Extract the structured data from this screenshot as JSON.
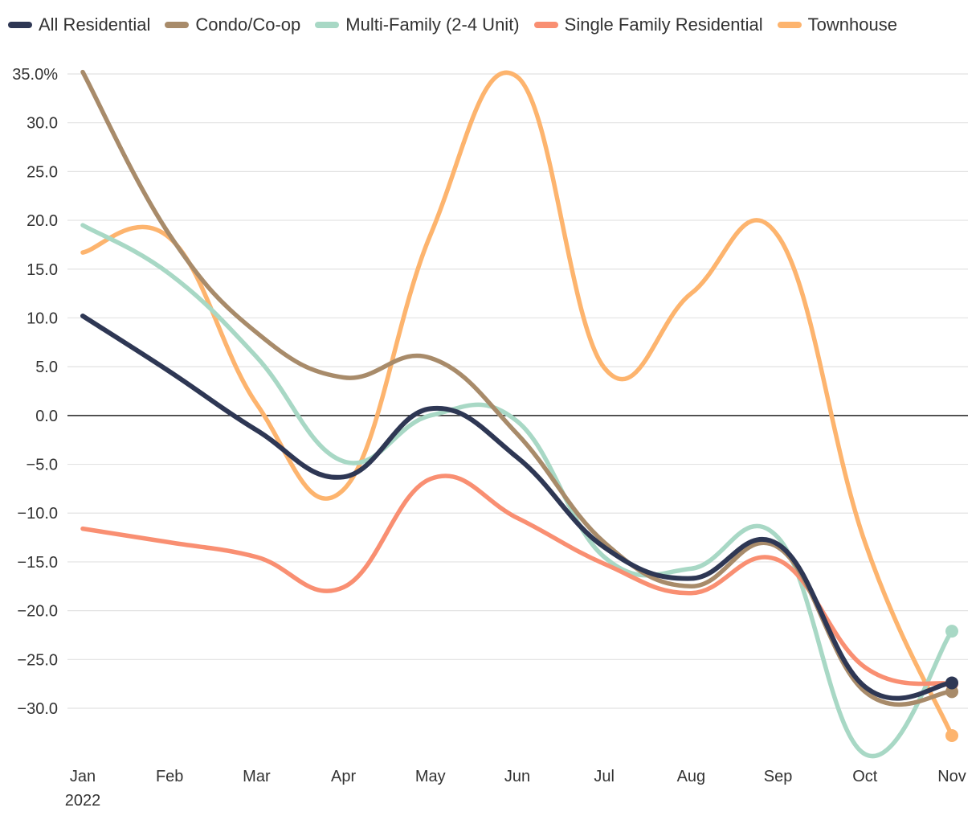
{
  "chart_data": {
    "type": "line",
    "title": "",
    "xlabel": "",
    "ylabel": "",
    "categories": [
      "Jan",
      "Feb",
      "Mar",
      "Apr",
      "May",
      "Jun",
      "Jul",
      "Aug",
      "Sep",
      "Oct",
      "Nov"
    ],
    "x_sublabel": "2022",
    "ylim": [
      -35,
      35
    ],
    "y_ticks": [
      35,
      30,
      25,
      20,
      15,
      10,
      5,
      0,
      -5,
      -10,
      -15,
      -20,
      -25,
      -30
    ],
    "y_tick_labels": [
      "35.0%",
      "30.0",
      "25.0",
      "20.0",
      "15.0",
      "10.0",
      "5.0",
      "0.0",
      "−5.0",
      "−10.0",
      "−15.0",
      "−20.0",
      "−25.0",
      "−30.0"
    ],
    "legend_position": "top-left",
    "series": [
      {
        "name": "All Residential",
        "color": "#2e3754",
        "values": [
          10.2,
          4.5,
          -1.5,
          -6.3,
          0.7,
          -4.3,
          -13.5,
          -16.7,
          -13.2,
          -27.8,
          -27.4
        ]
      },
      {
        "name": "Condo/Co-op",
        "color": "#a88b6a",
        "values": [
          35.2,
          18.5,
          8.5,
          3.9,
          5.9,
          -1.9,
          -13.0,
          -17.5,
          -13.5,
          -28.3,
          -28.3
        ]
      },
      {
        "name": "Multi-Family (2-4 Unit)",
        "color": "#a8d8c5",
        "values": [
          19.5,
          14.5,
          6.0,
          -4.7,
          0.0,
          -0.6,
          -14.5,
          -15.7,
          -12.5,
          -34.7,
          -22.1
        ]
      },
      {
        "name": "Single Family Residential",
        "color": "#f98f72",
        "values": [
          -11.6,
          -13.0,
          -14.5,
          -17.6,
          -6.5,
          -10.5,
          -15.2,
          -18.2,
          -14.8,
          -25.8,
          -27.5
        ]
      },
      {
        "name": "Townhouse",
        "color": "#fdb46e",
        "values": [
          16.7,
          18.2,
          1.2,
          -7.6,
          18.5,
          34.7,
          4.9,
          12.5,
          18.4,
          -13.0,
          -32.8
        ]
      }
    ]
  }
}
